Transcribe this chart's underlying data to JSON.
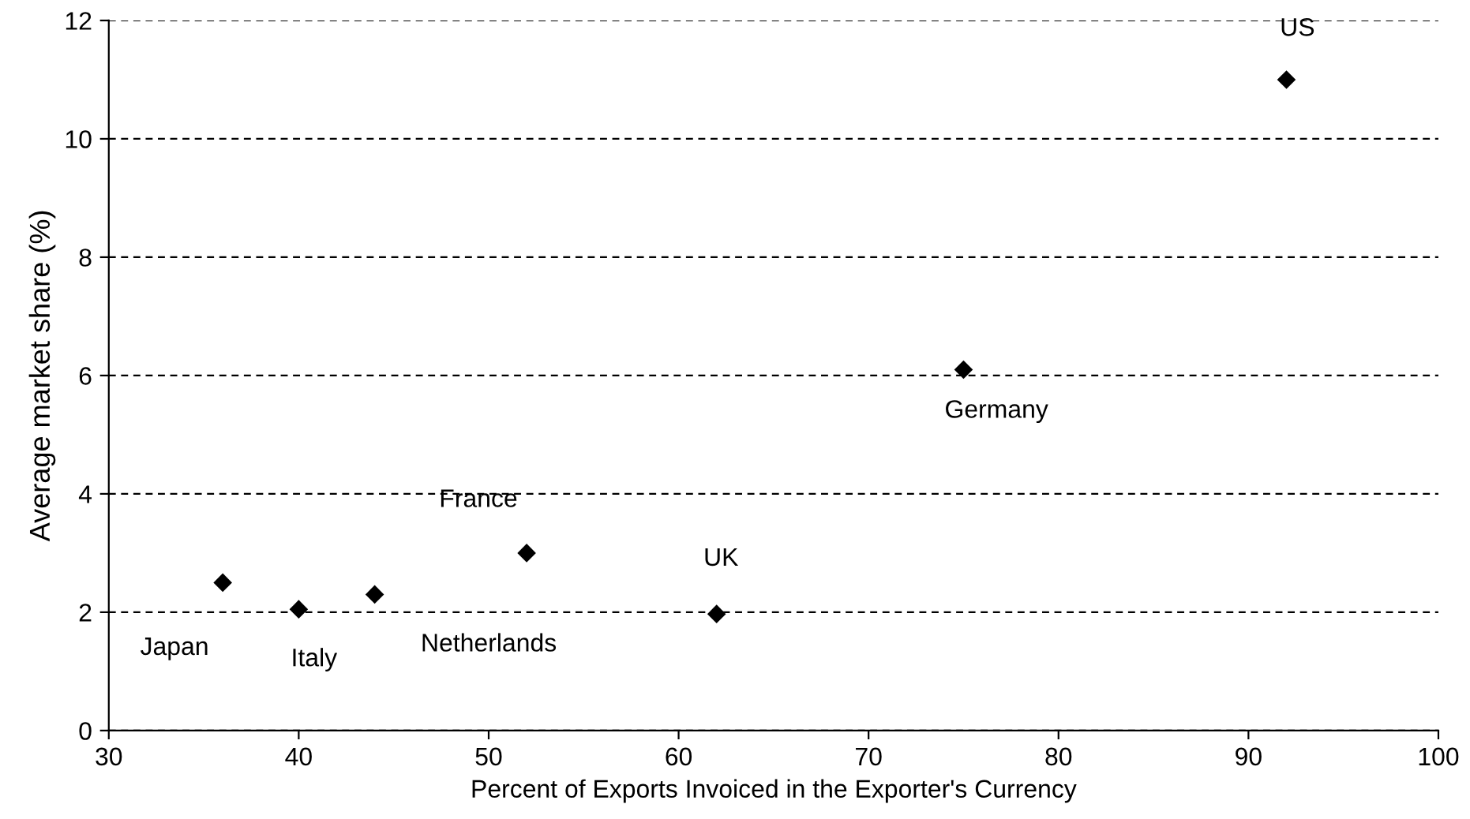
{
  "chart_data": {
    "type": "scatter",
    "xlabel": "Percent of Exports Invoiced in the Exporter's Currency",
    "ylabel": "Average market share (%)",
    "x": [
      36,
      40,
      44,
      52,
      62,
      75,
      92
    ],
    "values": [
      2.5,
      2.05,
      2.3,
      3.0,
      1.97,
      6.1,
      11.0
    ],
    "color": "#000000",
    "marker": "diamond",
    "grid": "y",
    "xlim": [
      30,
      100
    ],
    "xticks": [
      30,
      40,
      50,
      60,
      70,
      80,
      90,
      100
    ],
    "ylim": [
      0,
      12
    ],
    "yticks": [
      0,
      2,
      4,
      6,
      8,
      10,
      12
    ],
    "annotations": [
      {
        "text": "Japan",
        "x": 36,
        "y": 2.5
      },
      {
        "text": "Italy",
        "x": 40,
        "y": 2.05
      },
      {
        "text": "Netherlands",
        "x": 44,
        "y": 2.3
      },
      {
        "text": "France",
        "x": 52,
        "y": 3.0
      },
      {
        "text": "UK",
        "x": 62,
        "y": 1.97
      },
      {
        "text": "Germany",
        "x": 75,
        "y": 6.1
      },
      {
        "text": "US",
        "x": 92,
        "y": 11.0
      }
    ]
  }
}
